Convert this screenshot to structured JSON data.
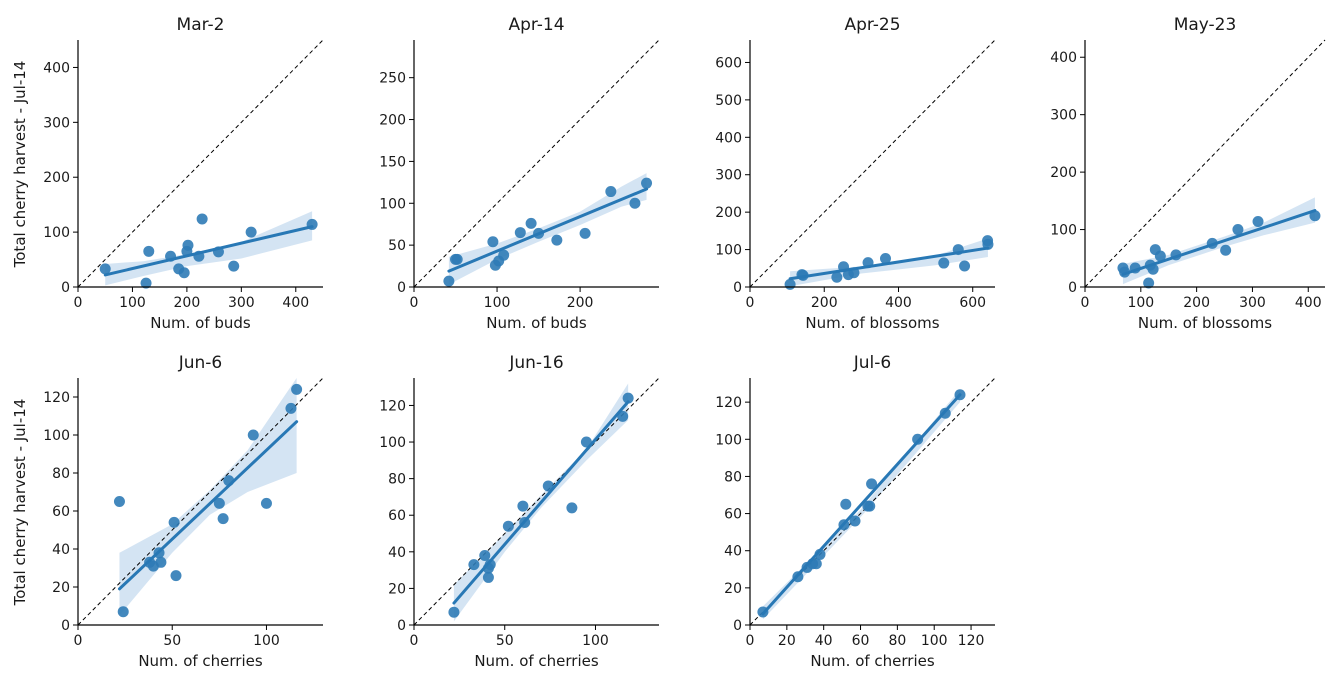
{
  "figure": {
    "ylabel": "Total cherry harvest - Jul-14",
    "colors": {
      "points": "#2f7bb6",
      "line": "#2878b5",
      "band": "#c6dbef",
      "identity": "#000000",
      "axis": "#000000"
    }
  },
  "chart_data": [
    {
      "type": "scatter",
      "title": "Mar-2",
      "xlabel": "Num. of buds",
      "ylabel": "Total cherry harvest - Jul-14",
      "xlim": [
        0,
        450
      ],
      "ylim": [
        0,
        450
      ],
      "xticks": [
        0,
        100,
        200,
        300,
        400
      ],
      "yticks": [
        0,
        100,
        200,
        300,
        400
      ],
      "identity_line": true,
      "x": [
        50,
        125,
        130,
        170,
        185,
        195,
        200,
        202,
        222,
        228,
        258,
        286,
        318,
        430
      ],
      "y": [
        33,
        7,
        65,
        56,
        33,
        26,
        65,
        76,
        56,
        124,
        64,
        38,
        100,
        114
      ],
      "fit": {
        "x": [
          50,
          430
        ],
        "y": [
          22,
          110
        ]
      },
      "ci": {
        "x": [
          50,
          120,
          200,
          300,
          430
        ],
        "lower": [
          3,
          20,
          38,
          52,
          85
        ],
        "upper": [
          42,
          47,
          60,
          82,
          138
        ]
      }
    },
    {
      "type": "scatter",
      "title": "Apr-14",
      "xlabel": "Num. of buds",
      "ylabel": "",
      "xlim": [
        0,
        295
      ],
      "ylim": [
        0,
        295
      ],
      "xticks": [
        0,
        100,
        200
      ],
      "yticks": [
        0,
        50,
        100,
        150,
        200,
        250
      ],
      "identity_line": true,
      "x": [
        42,
        50,
        52,
        95,
        98,
        102,
        108,
        128,
        141,
        150,
        172,
        206,
        237,
        266,
        280
      ],
      "y": [
        7,
        33,
        33,
        54,
        26,
        31,
        38,
        65,
        76,
        64,
        56,
        64,
        114,
        100,
        124
      ],
      "fit": {
        "x": [
          42,
          280
        ],
        "y": [
          19,
          117
        ]
      },
      "ci": {
        "x": [
          42,
          100,
          150,
          200,
          250,
          280
        ],
        "lower": [
          3,
          33,
          54,
          74,
          96,
          104
        ],
        "upper": [
          36,
          52,
          70,
          90,
          120,
          136
        ]
      }
    },
    {
      "type": "scatter",
      "title": "Apr-25",
      "xlabel": "Num. of blossoms",
      "ylabel": "",
      "xlim": [
        0,
        660
      ],
      "ylim": [
        0,
        660
      ],
      "xticks": [
        0,
        200,
        400,
        600
      ],
      "yticks": [
        0,
        100,
        200,
        300,
        400,
        500,
        600
      ],
      "identity_line": true,
      "x": [
        108,
        140,
        143,
        234,
        252,
        265,
        280,
        318,
        365,
        522,
        561,
        578,
        640,
        641
      ],
      "y": [
        7,
        33,
        31,
        26,
        54,
        33,
        38,
        65,
        76,
        64,
        100,
        56,
        124,
        114
      ],
      "fit": {
        "x": [
          108,
          641
        ],
        "y": [
          22,
          104
        ]
      },
      "ci": {
        "x": [
          108,
          300,
          500,
          641
        ],
        "lower": [
          2,
          36,
          58,
          80
        ],
        "upper": [
          42,
          55,
          84,
          130
        ]
      }
    },
    {
      "type": "scatter",
      "title": "May-23",
      "xlabel": "Num. of blossoms",
      "ylabel": "",
      "xlim": [
        0,
        430
      ],
      "ylim": [
        0,
        430
      ],
      "xticks": [
        0,
        100,
        200,
        300,
        400
      ],
      "yticks": [
        0,
        100,
        200,
        300,
        400
      ],
      "identity_line": true,
      "x": [
        68,
        71,
        90,
        114,
        117,
        122,
        126,
        135,
        163,
        228,
        252,
        274,
        310,
        412
      ],
      "y": [
        33,
        26,
        33,
        7,
        38,
        31,
        65,
        54,
        56,
        76,
        64,
        100,
        114,
        124
      ],
      "fit": {
        "x": [
          68,
          412
        ],
        "y": [
          22,
          133
        ]
      },
      "ci": {
        "x": [
          68,
          150,
          250,
          320,
          412
        ],
        "lower": [
          5,
          38,
          70,
          90,
          112
        ],
        "upper": [
          40,
          56,
          88,
          112,
          156
        ]
      }
    },
    {
      "type": "scatter",
      "title": "Jun-6",
      "xlabel": "Num. of cherries",
      "ylabel": "Total cherry harvest - Jul-14",
      "xlim": [
        0,
        130
      ],
      "ylim": [
        0,
        130
      ],
      "xticks": [
        0,
        50,
        100
      ],
      "yticks": [
        0,
        20,
        40,
        60,
        80,
        100,
        120
      ],
      "identity_line": true,
      "x": [
        22,
        24,
        38,
        40,
        43,
        44,
        51,
        52,
        75,
        77,
        80,
        93,
        100,
        113,
        116
      ],
      "y": [
        65,
        7,
        33,
        31,
        38,
        33,
        54,
        26,
        64,
        56,
        76,
        100,
        64,
        114,
        124
      ],
      "fit": {
        "x": [
          22,
          116
        ],
        "y": [
          19,
          107
        ]
      },
      "ci": {
        "x": [
          22,
          50,
          70,
          90,
          116
        ],
        "lower": [
          5,
          38,
          58,
          70,
          80
        ],
        "upper": [
          38,
          53,
          71,
          92,
          130
        ]
      }
    },
    {
      "type": "scatter",
      "title": "Jun-16",
      "xlabel": "Num. of cherries",
      "ylabel": "",
      "xlim": [
        0,
        135
      ],
      "ylim": [
        0,
        135
      ],
      "xticks": [
        0,
        50,
        100
      ],
      "yticks": [
        0,
        20,
        40,
        60,
        80,
        100,
        120
      ],
      "identity_line": true,
      "x": [
        22,
        33,
        39,
        41,
        41,
        42,
        52,
        60,
        61,
        74,
        87,
        95,
        115,
        118
      ],
      "y": [
        7,
        33,
        38,
        31,
        26,
        33,
        54,
        65,
        56,
        76,
        64,
        100,
        114,
        124
      ],
      "fit": {
        "x": [
          22,
          118
        ],
        "y": [
          12,
          122
        ]
      },
      "ci": {
        "x": [
          22,
          50,
          70,
          95,
          118
        ],
        "lower": [
          2,
          40,
          64,
          90,
          112
        ],
        "upper": [
          22,
          50,
          71,
          96,
          132
        ]
      }
    },
    {
      "type": "scatter",
      "title": "Jul-6",
      "xlabel": "Num. of cherries",
      "ylabel": "",
      "xlim": [
        0,
        133
      ],
      "ylim": [
        0,
        133
      ],
      "xticks": [
        0,
        20,
        40,
        60,
        80,
        100,
        120
      ],
      "yticks": [
        0,
        20,
        40,
        60,
        80,
        100,
        120
      ],
      "identity_line": true,
      "x": [
        7,
        26,
        31,
        34,
        36,
        38,
        51,
        52,
        57,
        64,
        65,
        66,
        91,
        106,
        114
      ],
      "y": [
        7,
        26,
        31,
        33,
        33,
        38,
        54,
        65,
        56,
        64,
        64,
        76,
        100,
        114,
        124
      ],
      "fit": {
        "x": [
          7,
          114
        ],
        "y": [
          6,
          124
        ]
      },
      "ci": {
        "x": [
          7,
          60,
          114
        ],
        "lower": [
          3,
          58,
          120
        ],
        "upper": [
          10,
          62,
          127
        ]
      }
    }
  ]
}
